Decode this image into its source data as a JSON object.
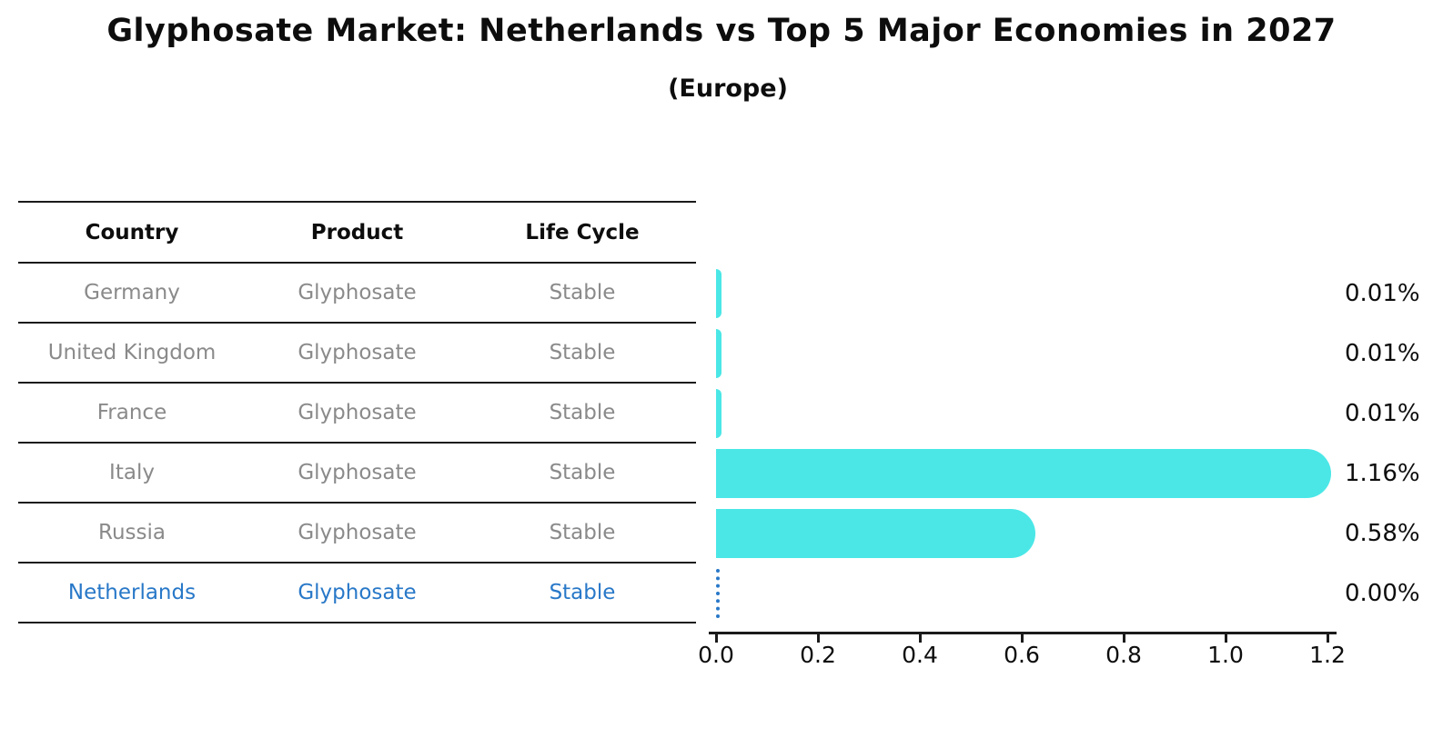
{
  "title": "Glyphosate Market: Netherlands vs Top 5 Major Economies in 2027",
  "subtitle": "(Europe)",
  "colors": {
    "bar": "#4be7e7",
    "highlight_text": "#2878c8",
    "row_text": "#8a8a8a",
    "heading_text": "#0d0d0d"
  },
  "table": {
    "headers": [
      "Country",
      "Product",
      "Life Cycle"
    ]
  },
  "chart_data": {
    "type": "bar",
    "orientation": "horizontal",
    "title": "Glyphosate Market: Netherlands vs Top 5 Major Economies in 2027",
    "subtitle": "(Europe)",
    "xlabel": "",
    "ylabel": "",
    "xlim": [
      0.0,
      1.2
    ],
    "x_ticks": [
      "0.0",
      "0.2",
      "0.4",
      "0.6",
      "0.8",
      "1.0",
      "1.2"
    ],
    "grid": false,
    "legend": false,
    "rows": [
      {
        "country": "Germany",
        "product": "Glyphosate",
        "life_cycle": "Stable",
        "value": 0.01,
        "value_label": "0.01%",
        "highlight": false
      },
      {
        "country": "United Kingdom",
        "product": "Glyphosate",
        "life_cycle": "Stable",
        "value": 0.01,
        "value_label": "0.01%",
        "highlight": false
      },
      {
        "country": "France",
        "product": "Glyphosate",
        "life_cycle": "Stable",
        "value": 0.01,
        "value_label": "0.01%",
        "highlight": false
      },
      {
        "country": "Italy",
        "product": "Glyphosate",
        "life_cycle": "Stable",
        "value": 1.16,
        "value_label": "1.16%",
        "highlight": false
      },
      {
        "country": "Russia",
        "product": "Glyphosate",
        "life_cycle": "Stable",
        "value": 0.58,
        "value_label": "0.58%",
        "highlight": false
      },
      {
        "country": "Netherlands",
        "product": "Glyphosate",
        "life_cycle": "Stable",
        "value": 0.0,
        "value_label": "0.00%",
        "highlight": true
      }
    ]
  }
}
